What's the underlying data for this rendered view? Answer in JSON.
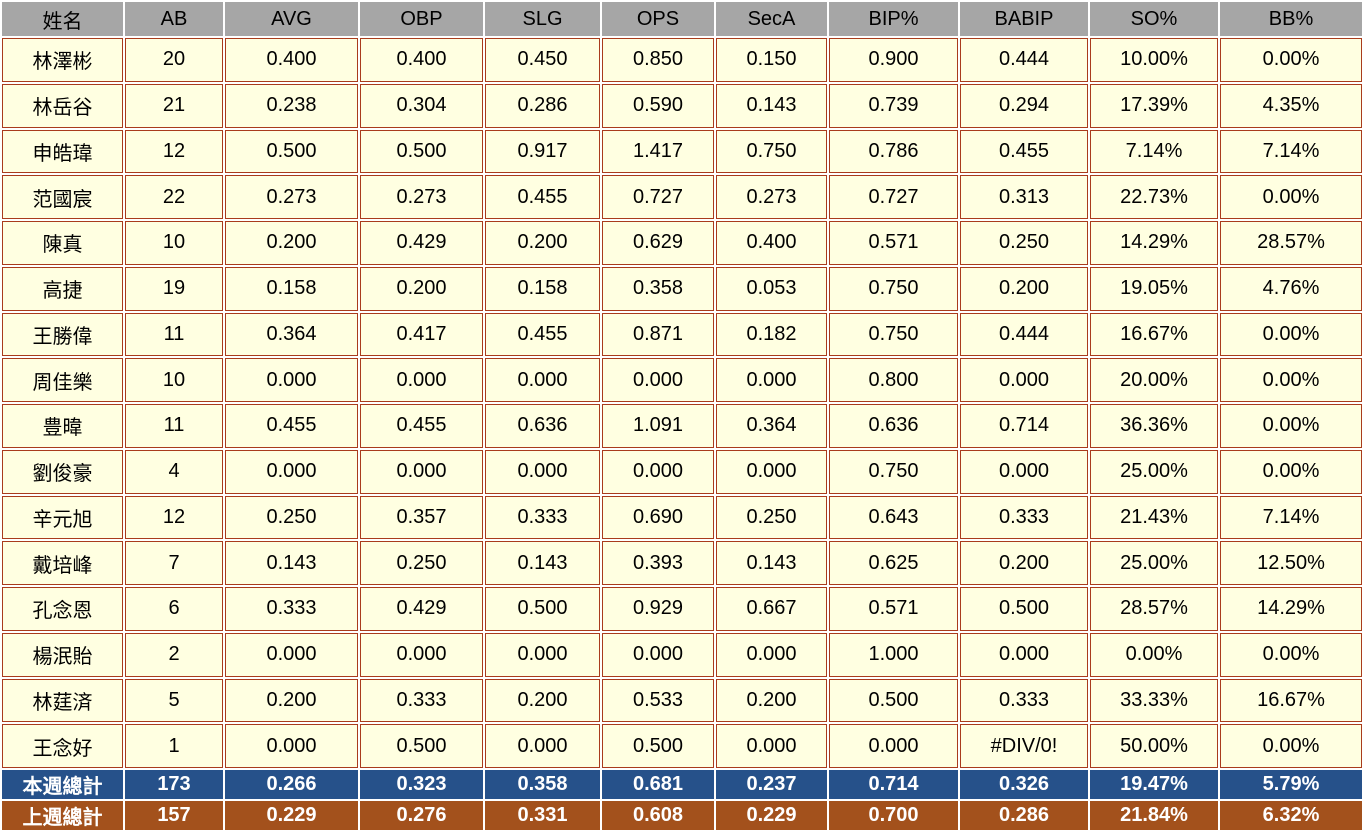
{
  "chart_data": {
    "type": "table",
    "title": "",
    "columns": [
      "姓名",
      "AB",
      "AVG",
      "OBP",
      "SLG",
      "OPS",
      "SecA",
      "BIP%",
      "BABIP",
      "SO%",
      "BB%"
    ],
    "rows": [
      [
        "林澤彬",
        "20",
        "0.400",
        "0.400",
        "0.450",
        "0.850",
        "0.150",
        "0.900",
        "0.444",
        "10.00%",
        "0.00%"
      ],
      [
        "林岳谷",
        "21",
        "0.238",
        "0.304",
        "0.286",
        "0.590",
        "0.143",
        "0.739",
        "0.294",
        "17.39%",
        "4.35%"
      ],
      [
        "申皓瑋",
        "12",
        "0.500",
        "0.500",
        "0.917",
        "1.417",
        "0.750",
        "0.786",
        "0.455",
        "7.14%",
        "7.14%"
      ],
      [
        "范國宸",
        "22",
        "0.273",
        "0.273",
        "0.455",
        "0.727",
        "0.273",
        "0.727",
        "0.313",
        "22.73%",
        "0.00%"
      ],
      [
        "陳真",
        "10",
        "0.200",
        "0.429",
        "0.200",
        "0.629",
        "0.400",
        "0.571",
        "0.250",
        "14.29%",
        "28.57%"
      ],
      [
        "高捷",
        "19",
        "0.158",
        "0.200",
        "0.158",
        "0.358",
        "0.053",
        "0.750",
        "0.200",
        "19.05%",
        "4.76%"
      ],
      [
        "王勝偉",
        "11",
        "0.364",
        "0.417",
        "0.455",
        "0.871",
        "0.182",
        "0.750",
        "0.444",
        "16.67%",
        "0.00%"
      ],
      [
        "周佳樂",
        "10",
        "0.000",
        "0.000",
        "0.000",
        "0.000",
        "0.000",
        "0.800",
        "0.000",
        "20.00%",
        "0.00%"
      ],
      [
        "豊暐",
        "11",
        "0.455",
        "0.455",
        "0.636",
        "1.091",
        "0.364",
        "0.636",
        "0.714",
        "36.36%",
        "0.00%"
      ],
      [
        "劉俊豪",
        "4",
        "0.000",
        "0.000",
        "0.000",
        "0.000",
        "0.000",
        "0.750",
        "0.000",
        "25.00%",
        "0.00%"
      ],
      [
        "辛元旭",
        "12",
        "0.250",
        "0.357",
        "0.333",
        "0.690",
        "0.250",
        "0.643",
        "0.333",
        "21.43%",
        "7.14%"
      ],
      [
        "戴培峰",
        "7",
        "0.143",
        "0.250",
        "0.143",
        "0.393",
        "0.143",
        "0.625",
        "0.200",
        "25.00%",
        "12.50%"
      ],
      [
        "孔念恩",
        "6",
        "0.333",
        "0.429",
        "0.500",
        "0.929",
        "0.667",
        "0.571",
        "0.500",
        "28.57%",
        "14.29%"
      ],
      [
        "楊泯貽",
        "2",
        "0.000",
        "0.000",
        "0.000",
        "0.000",
        "0.000",
        "1.000",
        "0.000",
        "0.00%",
        "0.00%"
      ],
      [
        "林莛済",
        "5",
        "0.200",
        "0.333",
        "0.200",
        "0.533",
        "0.200",
        "0.500",
        "0.333",
        "33.33%",
        "16.67%"
      ],
      [
        "王念好",
        "1",
        "0.000",
        "0.500",
        "0.000",
        "0.500",
        "0.000",
        "0.000",
        "#DIV/0!",
        "50.00%",
        "0.00%"
      ]
    ],
    "summary_rows": [
      {
        "label": "本週總計",
        "values": [
          "173",
          "0.266",
          "0.323",
          "0.358",
          "0.681",
          "0.237",
          "0.714",
          "0.326",
          "19.47%",
          "5.79%"
        ],
        "background": "#26518A"
      },
      {
        "label": "上週總計",
        "values": [
          "157",
          "0.229",
          "0.276",
          "0.331",
          "0.608",
          "0.229",
          "0.700",
          "0.286",
          "21.84%",
          "6.32%"
        ],
        "background": "#A3511C"
      }
    ]
  },
  "colors": {
    "header_bg": "#A6A6A6",
    "cell_bg": "#FFFFE1",
    "grid_border": "#A93B1C",
    "gap": "#FFFFFF",
    "summary_week_bg": "#26518A",
    "summary_prev_bg": "#A3511C",
    "summary_text": "#FFFFFF",
    "text": "#000000"
  }
}
